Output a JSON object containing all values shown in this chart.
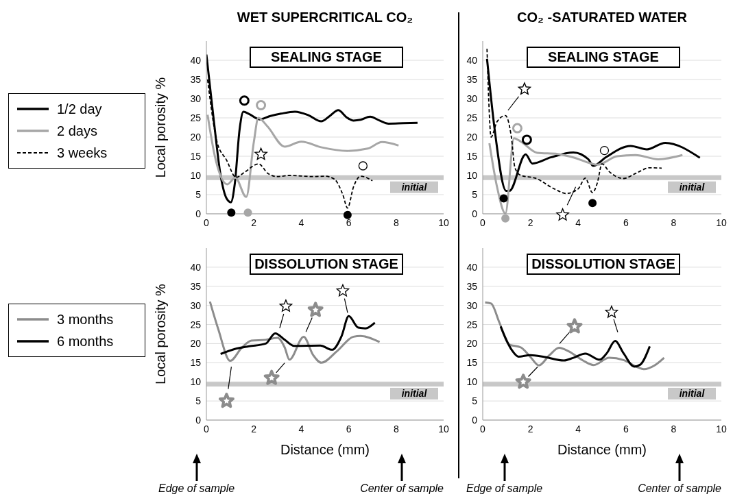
{
  "chart_data": [
    {
      "type": "line",
      "title": "WET SUPERCRITICAL CO₂",
      "subtitle": "SEALING STAGE",
      "ylabel": "Local porosity %",
      "xlim": [
        0,
        10
      ],
      "xticks": [
        0,
        2,
        4,
        6,
        8,
        10
      ],
      "ylim": [
        0,
        45
      ],
      "yticks": [
        0,
        5,
        10,
        15,
        20,
        25,
        30,
        35,
        40
      ],
      "grid": "y",
      "legend": "left",
      "marker": "none",
      "bands": [
        {
          "axis": "y",
          "from": 8.8,
          "to": 10,
          "label": "initial",
          "color": "#c8c8c8"
        }
      ],
      "series": [
        {
          "name": "1/2 day",
          "color": "#000000",
          "line_style": "solid",
          "x": [
            0,
            0.3,
            0.6,
            0.85,
            1.03,
            1.2,
            1.4,
            1.56,
            1.8,
            2.24,
            2.7,
            3.15,
            3.73,
            4.3,
            4.84,
            5.2,
            5.56,
            5.9,
            6.2,
            6.5,
            6.9,
            7.3,
            7.68,
            8.3,
            8.9
          ],
          "values": [
            41.5,
            25,
            10,
            4,
            3,
            8,
            22,
            26.6,
            26,
            24.6,
            25.5,
            26.1,
            26.6,
            25.7,
            24.1,
            25.5,
            27,
            25.2,
            24.3,
            24.5,
            25.3,
            24.3,
            23.5,
            23.6,
            23.7
          ]
        },
        {
          "name": "2 days",
          "color": "#a6a6a6",
          "line_style": "solid",
          "x": [
            0.05,
            0.35,
            0.88,
            1.22,
            1.68,
            2,
            2.19,
            2.57,
            3.3,
            4,
            4.87,
            5.93,
            6.8,
            7.4,
            8.1
          ],
          "values": [
            25.8,
            15.2,
            7.7,
            9.4,
            4.4,
            18.7,
            25,
            22.8,
            17.5,
            18.8,
            17.3,
            16.4,
            17,
            18.7,
            17.8
          ]
        },
        {
          "name": "3 weeks",
          "color": "#000000",
          "line_style": "dashed",
          "x": [
            0.05,
            0.45,
            0.85,
            1.25,
            1.6,
            2.2,
            2.6,
            3,
            3.5,
            4.5,
            5,
            5.4,
            5.75,
            5.95,
            6.2,
            6.5,
            7
          ],
          "values": [
            35,
            18.7,
            14,
            9.5,
            10.8,
            13,
            10.5,
            9.7,
            10,
            9.7,
            9.8,
            9,
            5,
            1.5,
            7,
            9.8,
            8.6
          ]
        }
      ]
    },
    {
      "type": "line",
      "title": "CO₂ -SATURATED WATER",
      "subtitle": "SEALING STAGE",
      "xlim": [
        0,
        10
      ],
      "xticks": [
        0,
        2,
        4,
        6,
        8,
        10
      ],
      "ylim": [
        0,
        45
      ],
      "yticks": [
        0,
        5,
        10,
        15,
        20,
        25,
        30,
        35,
        40
      ],
      "grid": "y",
      "marker": "none",
      "bands": [
        {
          "axis": "y",
          "from": 8.8,
          "to": 10,
          "label": "initial",
          "color": "#c8c8c8"
        }
      ],
      "series": [
        {
          "color": "#000000",
          "line_style": "solid",
          "x": [
            0.18,
            0.5,
            0.98,
            1.12,
            1.8,
            2.08,
            2.85,
            3.8,
            4.43,
            4.63,
            5.15,
            6.2,
            6.88,
            7.65,
            9.1
          ],
          "values": [
            40.4,
            22,
            6,
            6,
            15.5,
            13.1,
            14.7,
            16,
            14.2,
            12.5,
            14.7,
            17.7,
            16.8,
            18.5,
            14.6
          ]
        },
        {
          "color": "#a6a6a6",
          "line_style": "solid",
          "x": [
            0.28,
            0.6,
            0.95,
            1.31,
            1.6,
            2.28,
            3.14,
            3.8,
            4.82,
            5.63,
            6.4,
            7.36,
            8.37
          ],
          "values": [
            18.4,
            7,
            0.1,
            19.7,
            18.8,
            15.9,
            15.6,
            14.7,
            12.8,
            15,
            15.3,
            14.2,
            15.3
          ]
        },
        {
          "color": "#000000",
          "line_style": "dashed",
          "x": [
            0.18,
            0.25,
            0.35,
            0.6,
            0.95,
            1.2,
            1.35,
            1.6,
            2.2,
            3,
            3.5,
            4,
            4.3,
            4.6,
            4.8,
            5,
            5.3,
            5.9,
            6.4,
            7,
            7.5
          ],
          "values": [
            43,
            30,
            20,
            24,
            25.6,
            20,
            12,
            10,
            9.3,
            6.5,
            5.3,
            6.5,
            9.3,
            5.5,
            8,
            13,
            11,
            9.2,
            10.5,
            12,
            11.9
          ]
        }
      ]
    },
    {
      "type": "line",
      "subtitle": "DISSOLUTION STAGE",
      "xlabel": "Distance (mm)",
      "ylabel": "Local porosity %",
      "xlim": [
        0,
        10
      ],
      "xticks": [
        0,
        2,
        4,
        6,
        8,
        10
      ],
      "ylim": [
        0,
        45
      ],
      "yticks": [
        0,
        5,
        10,
        15,
        20,
        25,
        30,
        35,
        40
      ],
      "grid": "y",
      "legend": "left",
      "marker": "none",
      "bands": [
        {
          "axis": "y",
          "from": 8.8,
          "to": 10,
          "label": "initial",
          "color": "#c8c8c8"
        }
      ],
      "annotations": [
        "Edge of sample",
        "Center of sample"
      ],
      "series": [
        {
          "name": "3 months",
          "color": "#8c8c8c",
          "line_style": "solid",
          "x": [
            0.15,
            0.5,
            1,
            1.5,
            1.9,
            2.5,
            3,
            3.3,
            3.5,
            4.1,
            4.5,
            4.85,
            5.5,
            6.2,
            6.5,
            7.3
          ],
          "values": [
            31,
            23.8,
            15.5,
            19,
            20.8,
            21,
            21.5,
            19,
            15.8,
            21.8,
            17,
            15,
            18,
            21.8,
            22,
            20.4
          ]
        },
        {
          "name": "6 months",
          "color": "#000000",
          "line_style": "solid",
          "x": [
            0.6,
            1.2,
            1.8,
            2.5,
            2.9,
            3.3,
            3.7,
            4.8,
            5.3,
            5.7,
            6,
            6.4,
            6.7,
            7.1
          ],
          "values": [
            17.3,
            18.6,
            19.3,
            20,
            22.7,
            21,
            19.4,
            19.5,
            18.4,
            22,
            27.2,
            24.2,
            24,
            25.5
          ]
        }
      ]
    },
    {
      "type": "line",
      "subtitle": "DISSOLUTION STAGE",
      "xlabel": "Distance (mm)",
      "xlim": [
        0,
        10
      ],
      "xticks": [
        0,
        2,
        4,
        6,
        8,
        10
      ],
      "ylim": [
        0,
        45
      ],
      "yticks": [
        0,
        5,
        10,
        15,
        20,
        25,
        30,
        35,
        40
      ],
      "grid": "y",
      "marker": "none",
      "bands": [
        {
          "axis": "y",
          "from": 8.8,
          "to": 10,
          "label": "initial",
          "color": "#c8c8c8"
        }
      ],
      "annotations": [
        "Edge of sample",
        "Center of sample"
      ],
      "series": [
        {
          "color": "#8c8c8c",
          "line_style": "solid",
          "x": [
            0.1,
            0.35,
            0.7,
            1.1,
            1.6,
            2,
            2.35,
            2.8,
            3.2,
            3.6,
            4.2,
            4.65,
            5.3,
            5.9,
            6.5,
            6.75,
            7.2,
            7.6
          ],
          "values": [
            30.8,
            30.5,
            25.5,
            19.8,
            19,
            16.5,
            14.3,
            17,
            18.9,
            18,
            15.6,
            14.4,
            16.3,
            15.7,
            13.8,
            13.3,
            14.3,
            16.3
          ]
        },
        {
          "color": "#000000",
          "line_style": "solid",
          "x": [
            0.75,
            1.2,
            1.5,
            2,
            2.6,
            3.4,
            3.8,
            4.3,
            4.9,
            5.2,
            5.55,
            5.9,
            6.35,
            6.6,
            7
          ],
          "values": [
            24.5,
            18.5,
            16.6,
            17,
            16.5,
            15.6,
            16.3,
            17.4,
            15.8,
            17.5,
            20.7,
            17.5,
            14,
            14.5,
            19.3
          ]
        }
      ]
    }
  ]
}
